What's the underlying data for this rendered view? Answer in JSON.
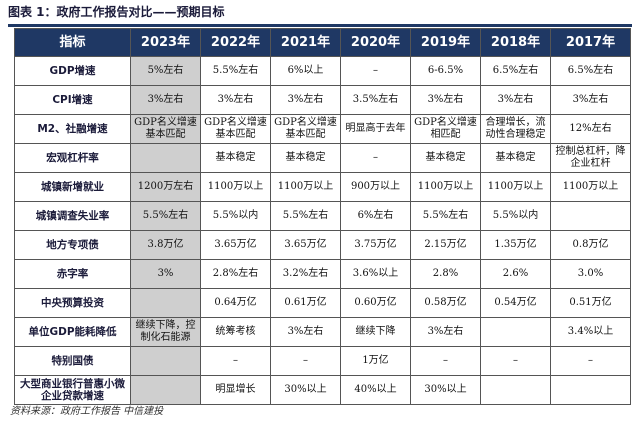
{
  "figure": {
    "title": "图表 1：政府工作报告对比——预期目标",
    "source": "资料来源：政府工作报告  中信建投"
  },
  "table": {
    "headers": [
      "指标",
      "2023年",
      "2022年",
      "2021年",
      "2020年",
      "2019年",
      "2018年",
      "2017年"
    ],
    "highlight_color": "#cfcfcf",
    "header_color": "#1f3864",
    "rows": [
      {
        "label": "GDP增速",
        "cells": [
          "5%左右",
          "5.5%左右",
          "6%以上",
          "–",
          "6-6.5%",
          "6.5%左右",
          "6.5%左右"
        ]
      },
      {
        "label": "CPI增速",
        "cells": [
          "3%左右",
          "3%左右",
          "3%左右",
          "3.5%左右",
          "3%左右",
          "3%左右",
          "3%左右"
        ]
      },
      {
        "label": "M2、社融增速",
        "cells": [
          "GDP名义增速基本匹配",
          "GDP名义增速基本匹配",
          "GDP名义增速基本匹配",
          "明显高于去年",
          "GDP名义增速相匹配",
          "合理增长，流动性合理稳定",
          "12%左右"
        ]
      },
      {
        "label": "宏观杠杆率",
        "cells": [
          "",
          "基本稳定",
          "基本稳定",
          "–",
          "基本稳定",
          "基本稳定",
          "控制总杠杆，降企业杠杆"
        ]
      },
      {
        "label": "城镇新增就业",
        "cells": [
          "1200万左右",
          "1100万以上",
          "1100万以上",
          "900万以上",
          "1100万以上",
          "1100万以上",
          "1100万以上"
        ]
      },
      {
        "label": "城镇调查失业率",
        "cells": [
          "5.5%左右",
          "5.5%以内",
          "5.5%左右",
          "6%左右",
          "5.5%左右",
          "5.5%以内",
          ""
        ]
      },
      {
        "label": "地方专项债",
        "cells": [
          "3.8万亿",
          "3.65万亿",
          "3.65万亿",
          "3.75万亿",
          "2.15万亿",
          "1.35万亿",
          "0.8万亿"
        ]
      },
      {
        "label": "赤字率",
        "cells": [
          "3%",
          "2.8%左右",
          "3.2%左右",
          "3.6%以上",
          "2.8%",
          "2.6%",
          "3.0%"
        ]
      },
      {
        "label": "中央预算投资",
        "cells": [
          "",
          "0.64万亿",
          "0.61万亿",
          "0.60万亿",
          "0.58万亿",
          "0.54万亿",
          "0.51万亿"
        ]
      },
      {
        "label": "单位GDP能耗降低",
        "cells": [
          "继续下降，控制化石能源",
          "统筹考核",
          "3%左右",
          "继续下降",
          "3%左右",
          "",
          "3.4%以上"
        ]
      },
      {
        "label": "特别国债",
        "cells": [
          "",
          "–",
          "–",
          "1万亿",
          "–",
          "–",
          "–"
        ]
      },
      {
        "label": "大型商业银行普惠小微企业贷款增速",
        "cells": [
          "",
          "明显增长",
          "30%以上",
          "40%以上",
          "30%以上",
          "",
          ""
        ]
      }
    ]
  }
}
